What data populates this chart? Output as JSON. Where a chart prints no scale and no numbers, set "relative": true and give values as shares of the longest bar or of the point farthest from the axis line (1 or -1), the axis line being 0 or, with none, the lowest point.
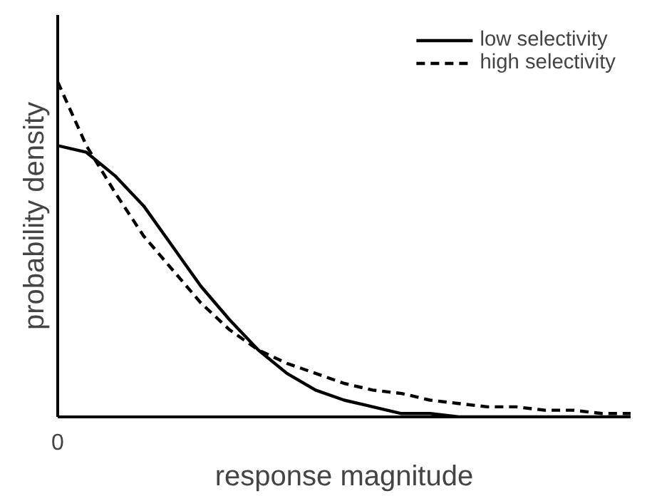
{
  "chart_data": {
    "type": "line",
    "relative": true,
    "xlabel": "response magnitude",
    "ylabel": "probability density",
    "annotations": [
      "0"
    ],
    "legend": "top right",
    "marker": "none",
    "categories": [
      null,
      null,
      null,
      null,
      null,
      null,
      null,
      null,
      null,
      null,
      null,
      null,
      null,
      null,
      null,
      null,
      null,
      null,
      null,
      null,
      null
    ],
    "series": [
      {
        "name": "low selectivity",
        "color": "#000000",
        "line_style": "solid",
        "values": [
          0.81,
          0.79,
          0.72,
          0.63,
          0.51,
          0.39,
          0.29,
          0.2,
          0.13,
          0.08,
          0.05,
          0.03,
          0.01,
          0.01,
          0,
          0,
          0,
          0,
          0,
          0,
          0
        ]
      },
      {
        "name": "high selectivity",
        "color": "#000000",
        "line_style": "dashed",
        "values": [
          1,
          0.81,
          0.67,
          0.54,
          0.44,
          0.34,
          0.26,
          0.2,
          0.16,
          0.13,
          0.1,
          0.08,
          0.07,
          0.05,
          0.04,
          0.03,
          0.03,
          0.02,
          0.02,
          0.01,
          0.01
        ]
      }
    ]
  }
}
